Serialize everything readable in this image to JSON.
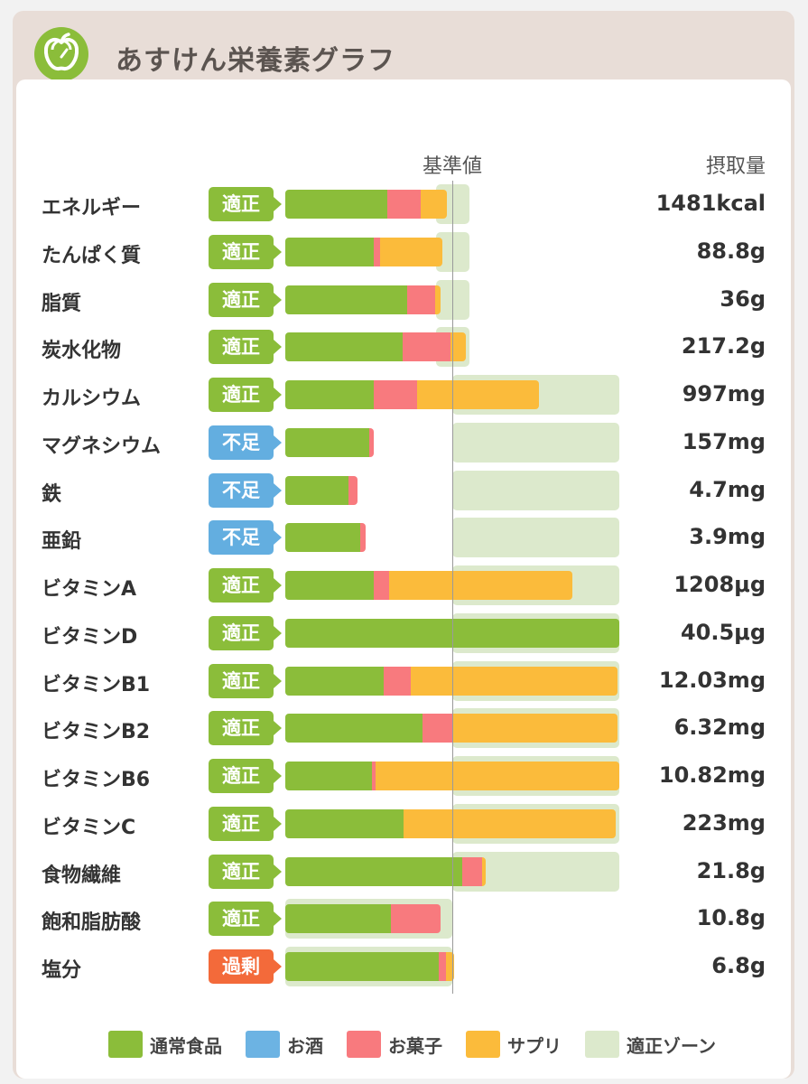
{
  "app": {
    "title": "あすけん栄養素グラフ",
    "logo_icon": "apple-scale-icon"
  },
  "colors": {
    "normal_food": "#8bbd3a",
    "alcohol": "#6cb3e3",
    "snacks": "#f87a7e",
    "supplement": "#fbbb3b",
    "zone": "#dce9cc",
    "status_ok": "#8bbd3a",
    "status_low": "#63aee0",
    "status_over": "#f36a3a"
  },
  "chart_data": {
    "type": "bar",
    "subtype": "stacked-horizontal",
    "title": "あすけん栄養素グラフ",
    "reference_label": "基準値",
    "intake_header": "摂取量",
    "x_unit": "percent_of_reference",
    "xlim": [
      0,
      200
    ],
    "grid": false,
    "legend_position": "bottom",
    "legend": [
      "通常食品",
      "お酒",
      "お菓子",
      "サプリ",
      "適正ゾーン"
    ],
    "series_names": [
      "通常食品",
      "お酒",
      "お菓子",
      "サプリ"
    ],
    "rows": [
      {
        "name": "エネルギー",
        "status": "適正",
        "status_type": "ok",
        "intake": "1481kcal",
        "values": [
          61,
          0,
          20,
          16
        ],
        "zone": [
          90,
          110
        ]
      },
      {
        "name": "たんぱく質",
        "status": "適正",
        "status_type": "ok",
        "intake": "88.8g",
        "values": [
          53,
          0,
          4,
          37
        ],
        "zone": [
          90,
          110
        ]
      },
      {
        "name": "脂質",
        "status": "適正",
        "status_type": "ok",
        "intake": "36g",
        "values": [
          73,
          0,
          17,
          3
        ],
        "zone": [
          90,
          110
        ]
      },
      {
        "name": "炭水化物",
        "status": "適正",
        "status_type": "ok",
        "intake": "217.2g",
        "values": [
          70,
          0,
          29,
          9
        ],
        "zone": [
          90,
          110
        ]
      },
      {
        "name": "カルシウム",
        "status": "適正",
        "status_type": "ok",
        "intake": "997mg",
        "values": [
          53,
          0,
          26,
          73
        ],
        "zone": [
          100,
          200
        ]
      },
      {
        "name": "マグネシウム",
        "status": "不足",
        "status_type": "low",
        "intake": "157mg",
        "values": [
          50,
          0,
          3,
          0
        ],
        "zone": [
          100,
          200
        ]
      },
      {
        "name": "鉄",
        "status": "不足",
        "status_type": "low",
        "intake": "4.7mg",
        "values": [
          38,
          0,
          5,
          0
        ],
        "zone": [
          100,
          200
        ]
      },
      {
        "name": "亜鉛",
        "status": "不足",
        "status_type": "low",
        "intake": "3.9mg",
        "values": [
          45,
          0,
          3,
          0
        ],
        "zone": [
          100,
          200
        ]
      },
      {
        "name": "ビタミンA",
        "status": "適正",
        "status_type": "ok",
        "intake": "1208μg",
        "values": [
          53,
          0,
          9,
          110
        ],
        "zone": [
          100,
          200
        ]
      },
      {
        "name": "ビタミンD",
        "status": "適正",
        "status_type": "ok",
        "intake": "40.5μg",
        "values": [
          200,
          0,
          0,
          0
        ],
        "zone": [
          100,
          200
        ]
      },
      {
        "name": "ビタミンB1",
        "status": "適正",
        "status_type": "ok",
        "intake": "12.03mg",
        "values": [
          59,
          0,
          16,
          124
        ],
        "zone": [
          100,
          200
        ]
      },
      {
        "name": "ビタミンB2",
        "status": "適正",
        "status_type": "ok",
        "intake": "6.32mg",
        "values": [
          82,
          0,
          18,
          99
        ],
        "zone": [
          100,
          200
        ]
      },
      {
        "name": "ビタミンB6",
        "status": "適正",
        "status_type": "ok",
        "intake": "10.82mg",
        "values": [
          52,
          0,
          2,
          146
        ],
        "zone": [
          100,
          200
        ]
      },
      {
        "name": "ビタミンC",
        "status": "適正",
        "status_type": "ok",
        "intake": "223mg",
        "values": [
          71,
          0,
          0,
          127
        ],
        "zone": [
          100,
          200
        ]
      },
      {
        "name": "食物繊維",
        "status": "適正",
        "status_type": "ok",
        "intake": "21.8g",
        "values": [
          106,
          0,
          12,
          2
        ],
        "zone": [
          100,
          200
        ]
      },
      {
        "name": "飽和脂肪酸",
        "status": "適正",
        "status_type": "ok",
        "intake": "10.8g",
        "values": [
          63,
          0,
          30,
          0
        ],
        "zone": [
          0,
          100
        ]
      },
      {
        "name": "塩分",
        "status": "過剰",
        "status_type": "over",
        "intake": "6.8g",
        "values": [
          92,
          0,
          4,
          5
        ],
        "zone": [
          0,
          100
        ]
      }
    ]
  }
}
